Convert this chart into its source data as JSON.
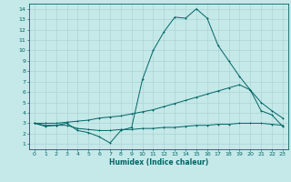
{
  "xlabel": "Humidex (Indice chaleur)",
  "bg_color": "#c5e8e8",
  "grid_color": "#aed4d4",
  "line_color": "#006666",
  "xlim": [
    -0.5,
    23.5
  ],
  "ylim": [
    0.5,
    14.5
  ],
  "xticks": [
    0,
    1,
    2,
    3,
    4,
    5,
    6,
    7,
    8,
    9,
    10,
    11,
    12,
    13,
    14,
    15,
    16,
    17,
    18,
    19,
    20,
    21,
    22,
    23
  ],
  "yticks": [
    1,
    2,
    3,
    4,
    5,
    6,
    7,
    8,
    9,
    10,
    11,
    12,
    13,
    14
  ],
  "line1_x": [
    0,
    1,
    2,
    3,
    4,
    5,
    6,
    7,
    8,
    9,
    10,
    11,
    12,
    13,
    14,
    15,
    16,
    17,
    18,
    19,
    20,
    21,
    22,
    23
  ],
  "line1_y": [
    3.0,
    2.7,
    2.8,
    3.0,
    2.3,
    2.1,
    1.7,
    1.1,
    2.3,
    2.6,
    7.2,
    10.0,
    11.8,
    13.2,
    13.1,
    14.0,
    13.1,
    10.5,
    9.0,
    7.5,
    6.2,
    4.2,
    3.8,
    2.7
  ],
  "line2_x": [
    0,
    1,
    2,
    3,
    4,
    5,
    6,
    7,
    8,
    9,
    10,
    11,
    12,
    13,
    14,
    15,
    16,
    17,
    18,
    19,
    20,
    21,
    22,
    23
  ],
  "line2_y": [
    3.0,
    3.0,
    3.0,
    3.1,
    3.2,
    3.3,
    3.5,
    3.6,
    3.7,
    3.9,
    4.1,
    4.3,
    4.6,
    4.9,
    5.2,
    5.5,
    5.8,
    6.1,
    6.4,
    6.7,
    6.2,
    5.0,
    4.2,
    3.5
  ],
  "line3_x": [
    0,
    1,
    2,
    3,
    4,
    5,
    6,
    7,
    8,
    9,
    10,
    11,
    12,
    13,
    14,
    15,
    16,
    17,
    18,
    19,
    20,
    21,
    22,
    23
  ],
  "line3_y": [
    3.0,
    2.8,
    2.8,
    2.8,
    2.5,
    2.4,
    2.3,
    2.3,
    2.4,
    2.4,
    2.5,
    2.5,
    2.6,
    2.6,
    2.7,
    2.8,
    2.8,
    2.9,
    2.9,
    3.0,
    3.0,
    3.0,
    2.9,
    2.8
  ]
}
